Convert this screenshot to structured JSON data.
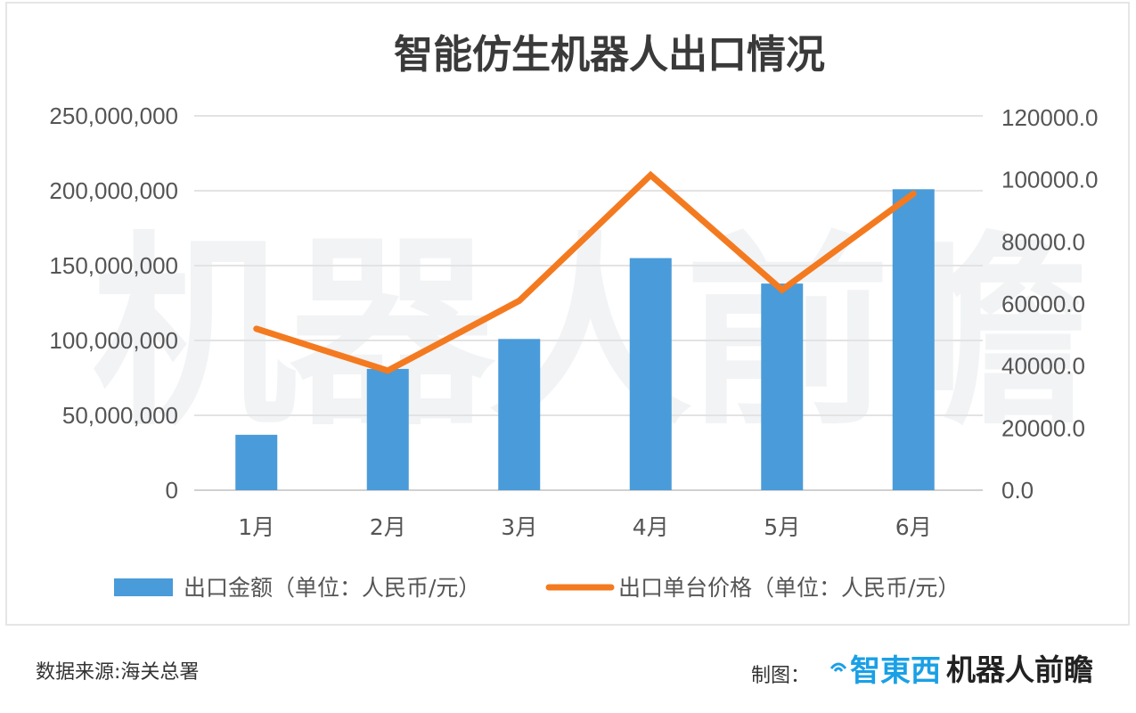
{
  "chart_data": {
    "type": "bar",
    "title": "智能仿生机器人出口情况",
    "categories": [
      "1月",
      "2月",
      "3月",
      "4月",
      "5月",
      "6月"
    ],
    "series": [
      {
        "name": "出口金额（单位：人民币/元）",
        "type": "bar",
        "axis": "left",
        "color": "#4a9bd9",
        "values": [
          37000000,
          81000000,
          101000000,
          155000000,
          138000000,
          201000000
        ]
      },
      {
        "name": "出口单台价格（单位：人民币/元）",
        "type": "line",
        "axis": "right",
        "color": "#f47a20",
        "values": [
          52000,
          38500,
          61000,
          101500,
          64500,
          95500
        ]
      }
    ],
    "y_left": {
      "range": [
        0,
        250000000
      ],
      "ticks": [
        0,
        50000000,
        100000000,
        150000000,
        200000000,
        250000000
      ],
      "tick_labels": [
        "0",
        "50,000,000",
        "100,000,000",
        "150,000,000",
        "200,000,000",
        "250,000,000"
      ]
    },
    "y_right": {
      "range": [
        0,
        120000
      ],
      "ticks": [
        0,
        20000,
        40000,
        60000,
        80000,
        100000,
        120000
      ],
      "tick_labels": [
        "0.0",
        "20000.0",
        "40000.0",
        "60000.0",
        "80000.0",
        "100000.0",
        "120000.0"
      ]
    },
    "grid": "horizontal",
    "legend_position": "bottom",
    "watermark": "机器人前瞻"
  },
  "footer": {
    "source": "数据来源:海关总署",
    "credit_label": "制图：",
    "logo_zhidx": "智東西",
    "logo_robot": "机器人前瞻"
  }
}
